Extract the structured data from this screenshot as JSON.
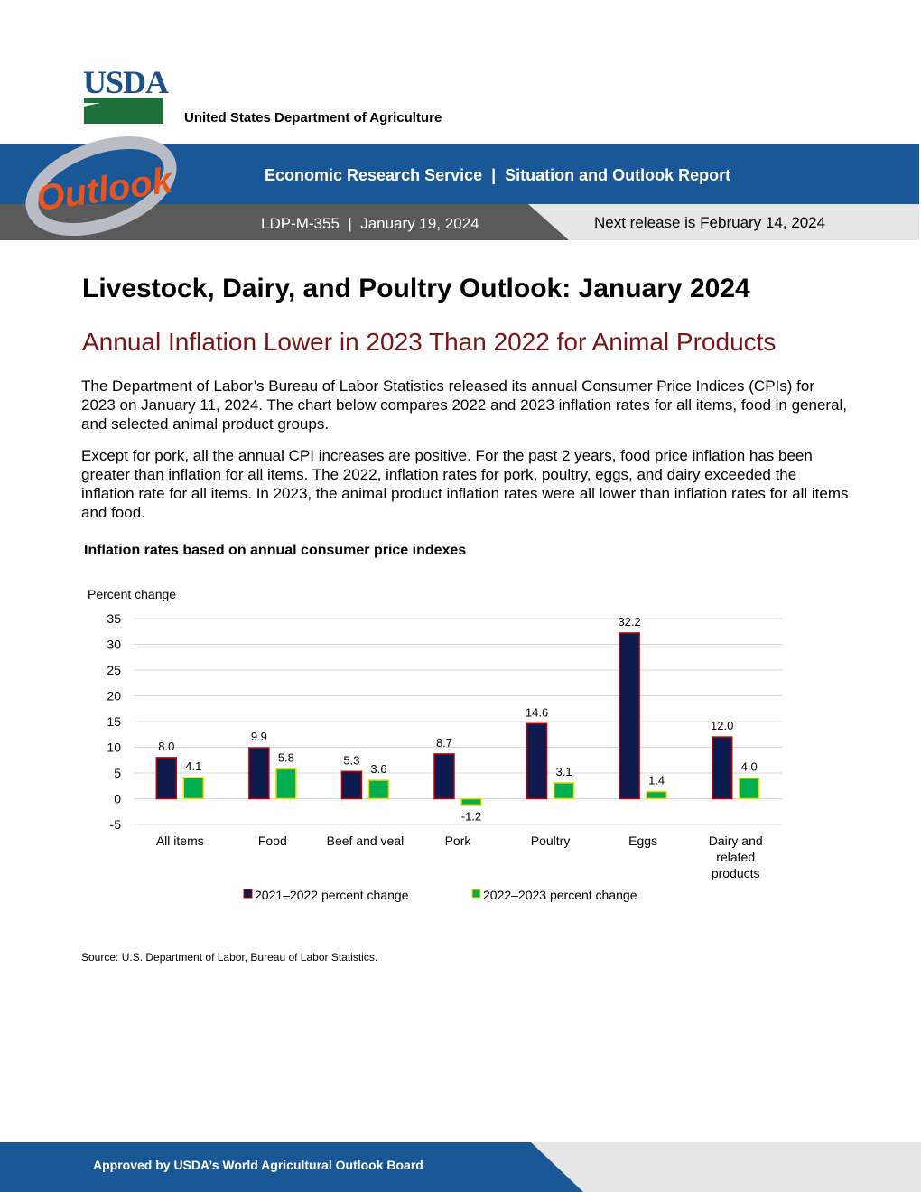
{
  "header": {
    "logo": "USDA",
    "agency": "United States Department of Agriculture",
    "banner_logo": "Outlook",
    "banner_line": "Economic Research Service  |  Situation and Outlook Report",
    "report_line": "LDP-M-355  |  January 19, 2024",
    "next_release": "Next release is February 14, 2024"
  },
  "title": "Livestock, Dairy, and Poultry Outlook: January 2024",
  "subtitle": "Annual Inflation Lower in 2023 Than 2022 for Animal Products",
  "paragraphs": [
    "The Department of Labor’s Bureau of Labor Statistics released its annual Consumer Price Indices (CPIs) for 2023 on January 11, 2024. The chart below compares 2022 and 2023 inflation rates for all items, food in general, and selected animal product groups.",
    "Except for pork, all the annual CPI increases are positive. For the past 2 years, food price inflation has been greater than inflation for all items. The 2022, inflation rates for pork, poultry, eggs, and dairy exceeded the inflation rate for all items. In 2023, the animal product inflation rates were all lower than inflation rates for all items and food."
  ],
  "chart_data": {
    "type": "bar",
    "title": "Inflation rates based on annual consumer price indexes",
    "y_label": "Percent change",
    "categories": [
      "All items",
      "Food",
      "Beef and veal",
      "Pork",
      "Poultry",
      "Eggs",
      "Dairy and related products"
    ],
    "series": [
      {
        "name": "2021–2022 percent change",
        "color": "#0f1a4f",
        "edge": "#c00000",
        "values": [
          8.0,
          9.9,
          5.3,
          8.7,
          14.6,
          32.2,
          12.0
        ],
        "value_labels": [
          "8.0",
          "9.9",
          "5.3",
          "8.7",
          "14.6",
          "32.2",
          "12.0"
        ]
      },
      {
        "name": "2022–2023 percent change",
        "color": "#00b050",
        "edge": "#ffd700",
        "values": [
          4.1,
          5.8,
          3.6,
          -1.2,
          3.1,
          1.4,
          4.0
        ],
        "value_labels": [
          "4.1",
          "5.8",
          "3.6",
          "-1.2",
          "3.1",
          "1.4",
          "4.0"
        ]
      }
    ],
    "ylim": [
      -5,
      35
    ],
    "yticks": [
      -5,
      0,
      5,
      10,
      15,
      20,
      25,
      30,
      35
    ],
    "grid": true
  },
  "source": "Source: U.S. Department of Labor, Bureau of Labor Statistics.",
  "footer": "Approved by USDA’s World Agricultural Outlook Board"
}
